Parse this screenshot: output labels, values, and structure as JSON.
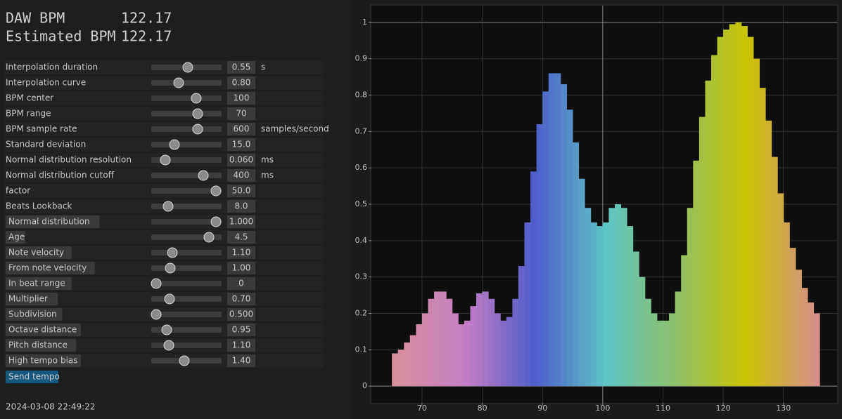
{
  "header": {
    "daw_label": "DAW BPM",
    "daw_value": "122.17",
    "est_label": "Estimated BPM",
    "est_value": "122.17"
  },
  "settings": [
    {
      "label": "Interpolation duration",
      "value": "0.55",
      "unit": "s"
    },
    {
      "label": "Interpolation curve",
      "value": "0.80"
    },
    {
      "label": "BPM center",
      "value": "100"
    },
    {
      "label": "BPM range",
      "value": "70"
    },
    {
      "label": "BPM sample rate",
      "value": "600",
      "unit": "samples/second"
    },
    {
      "label": "Standard deviation",
      "value": "15.0"
    },
    {
      "label": "Normal distribution resolution",
      "value": "0.060",
      "unit": "ms"
    },
    {
      "label": "Normal distribution cutoff",
      "value": "400",
      "unit": "ms"
    },
    {
      "label": "factor",
      "value": "50.0"
    },
    {
      "label": "Beats Lookback",
      "value": "8.0"
    }
  ],
  "weights": [
    {
      "label": "Normal distribution",
      "value": "1.000"
    },
    {
      "label": "Age",
      "value": "4.5"
    },
    {
      "label": "Note velocity",
      "value": "1.10"
    },
    {
      "label": "From note velocity",
      "value": "1.00"
    },
    {
      "label": "In beat range",
      "value": "0"
    },
    {
      "label": "Multiplier",
      "value": "0.70"
    },
    {
      "label": "Subdivision",
      "value": "0.500"
    },
    {
      "label": "Octave distance",
      "value": "0.95"
    },
    {
      "label": "Pitch distance",
      "value": "1.10"
    },
    {
      "label": "High tempo bias",
      "value": "1.40"
    }
  ],
  "send_button": "Send tempo",
  "timestamp": "2024-03-08 22:49:22",
  "chart_data": {
    "type": "bar",
    "x": [
      65,
      66,
      67,
      68,
      69,
      70,
      71,
      72,
      73,
      74,
      75,
      76,
      77,
      78,
      79,
      80,
      81,
      82,
      83,
      84,
      85,
      86,
      87,
      88,
      89,
      90,
      91,
      92,
      93,
      94,
      95,
      96,
      97,
      98,
      99,
      100,
      101,
      102,
      103,
      104,
      105,
      106,
      107,
      108,
      109,
      110,
      111,
      112,
      113,
      114,
      115,
      116,
      117,
      118,
      119,
      120,
      121,
      122,
      123,
      124,
      125,
      126,
      127,
      128,
      129,
      130,
      131,
      132,
      133,
      134,
      135
    ],
    "values": [
      0.09,
      0.1,
      0.12,
      0.14,
      0.17,
      0.2,
      0.24,
      0.26,
      0.26,
      0.24,
      0.2,
      0.17,
      0.18,
      0.22,
      0.255,
      0.26,
      0.24,
      0.2,
      0.18,
      0.19,
      0.24,
      0.33,
      0.45,
      0.59,
      0.72,
      0.81,
      0.86,
      0.86,
      0.83,
      0.76,
      0.67,
      0.57,
      0.49,
      0.45,
      0.44,
      0.45,
      0.49,
      0.5,
      0.49,
      0.44,
      0.37,
      0.3,
      0.24,
      0.2,
      0.18,
      0.18,
      0.2,
      0.26,
      0.36,
      0.49,
      0.62,
      0.74,
      0.84,
      0.91,
      0.96,
      0.98,
      0.995,
      1.0,
      0.99,
      0.96,
      0.9,
      0.82,
      0.73,
      0.63,
      0.53,
      0.45,
      0.38,
      0.32,
      0.27,
      0.23,
      0.2
    ],
    "colormap": [
      "#d8909c",
      "#c47fc4",
      "#4f5ccc",
      "#5cc6c4",
      "#8fc06a",
      "#c9c400",
      "#d6908c"
    ],
    "xlim": [
      61.6,
      138.9
    ],
    "ylim": [
      -0.046,
      1.046
    ],
    "xticks": [
      70,
      80,
      90,
      100,
      110,
      120,
      130
    ],
    "yticks": [
      0,
      0.1,
      0.2,
      0.3,
      0.4,
      0.5,
      0.6,
      0.7,
      0.8,
      0.9,
      1
    ],
    "grid": true
  }
}
